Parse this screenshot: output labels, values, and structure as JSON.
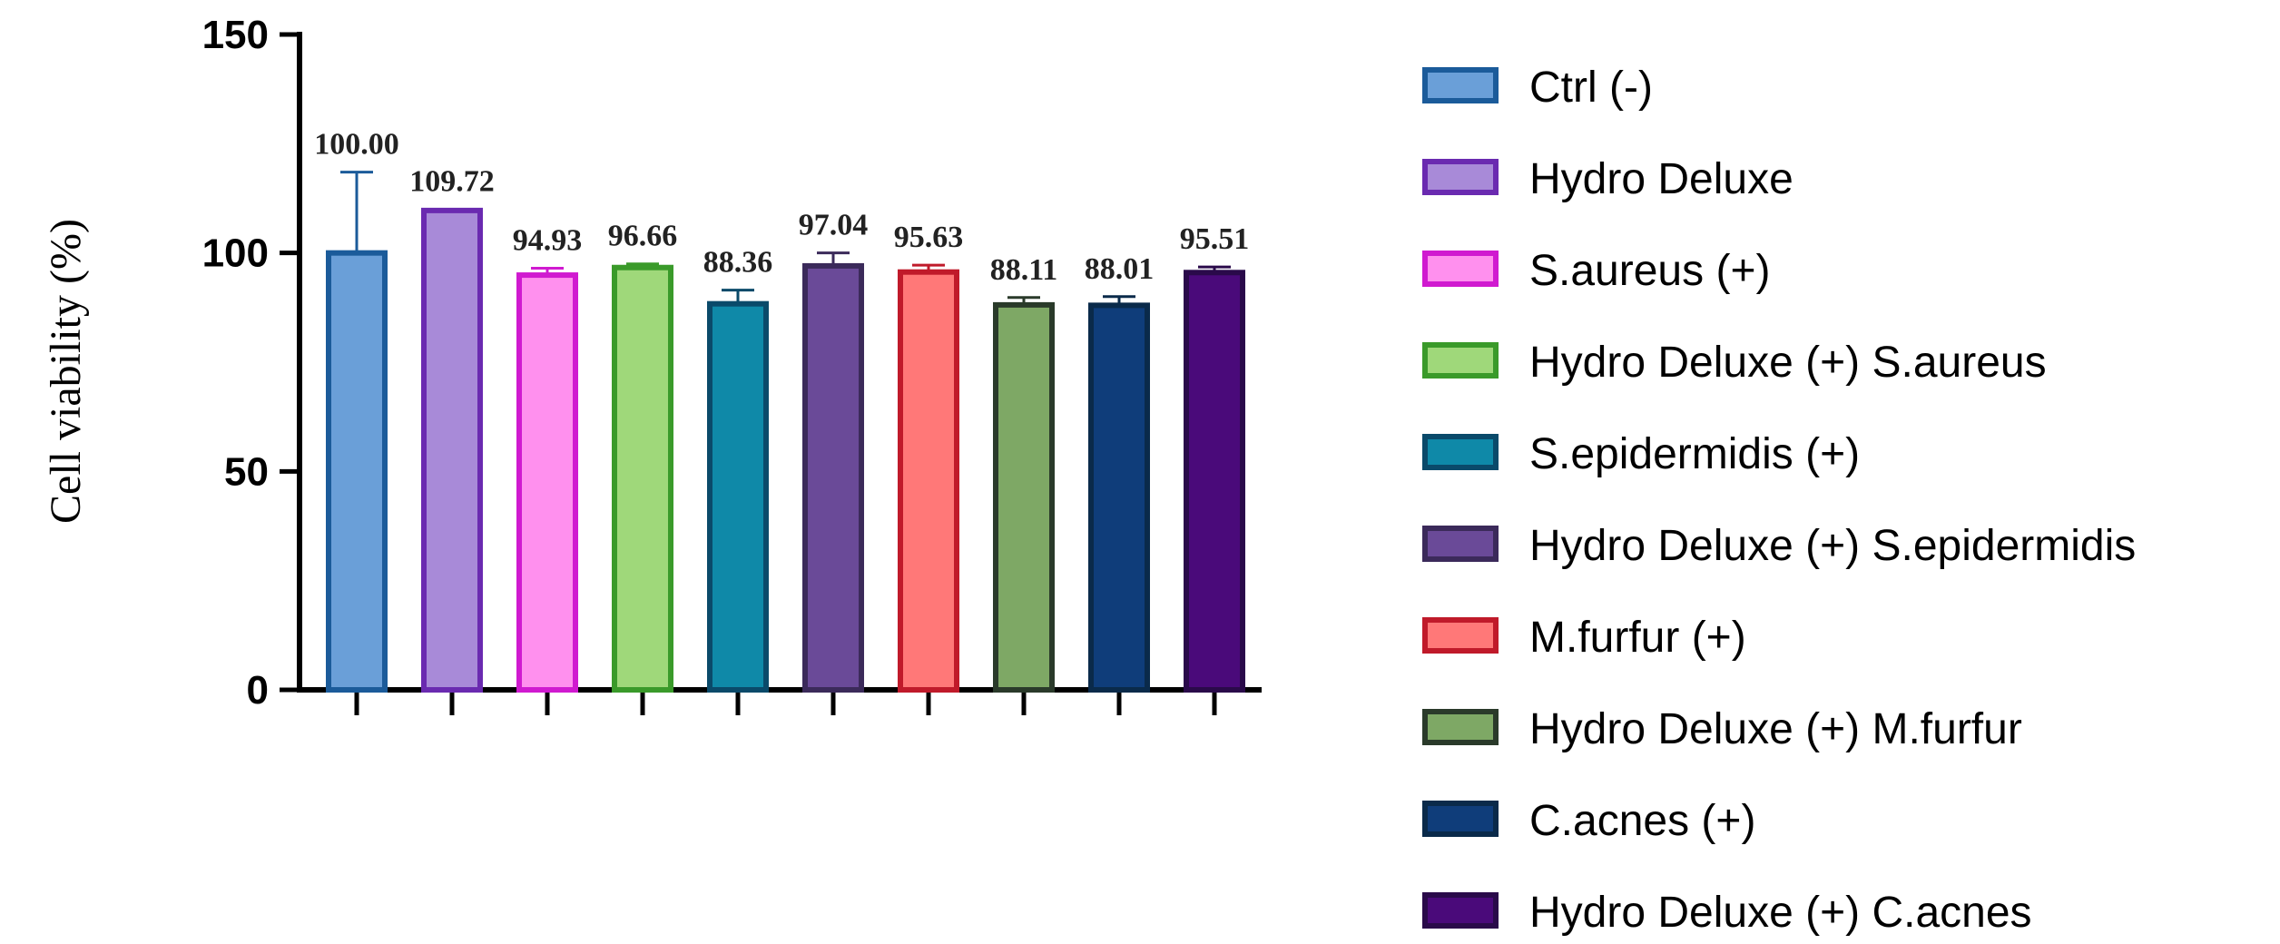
{
  "chart_data": {
    "type": "bar",
    "title": "",
    "xlabel": "",
    "ylabel": "Cell viability (%)",
    "ylim": [
      0,
      150
    ],
    "yticks": [
      0,
      50,
      100,
      150
    ],
    "grid": false,
    "legend_position": "right",
    "categories": [
      "Ctrl (-)",
      "Hydro Deluxe",
      "S.aureus (+)",
      "Hydro Deluxe (+) S.aureus",
      "S.epidermidis (+)",
      "Hydro Deluxe (+) S.epidermidis",
      "M.furfur (+)",
      "Hydro Deluxe (+) M.furfur",
      "C.acnes (+)",
      "Hydro Deluxe (+) C.acnes"
    ],
    "values": [
      100.0,
      109.72,
      94.93,
      96.66,
      88.36,
      97.04,
      95.63,
      88.11,
      88.01,
      95.51
    ],
    "error_upper": [
      118.5,
      110.0,
      96.5,
      97.5,
      91.5,
      100.0,
      97.2,
      89.8,
      90.0,
      96.8
    ],
    "data_labels": [
      "100.00",
      "109.72",
      "94.93",
      "96.66",
      "88.36",
      "97.04",
      "95.63",
      "88.11",
      "88.01",
      "95.51"
    ],
    "fill_colors": [
      "#6a9fd8",
      "#a88ad8",
      "#ff90ee",
      "#9fd87a",
      "#0f89a8",
      "#6a4a98",
      "#ff7878",
      "#7ea865",
      "#0f3d7a",
      "#4a0a7a"
    ],
    "edge_colors": [
      "#1b5b9a",
      "#6a2ab0",
      "#d01ad0",
      "#3a9a2a",
      "#0a4a6a",
      "#3b2a5a",
      "#c01a2a",
      "#2a3a2a",
      "#0a2a4a",
      "#2a0a4a"
    ]
  }
}
